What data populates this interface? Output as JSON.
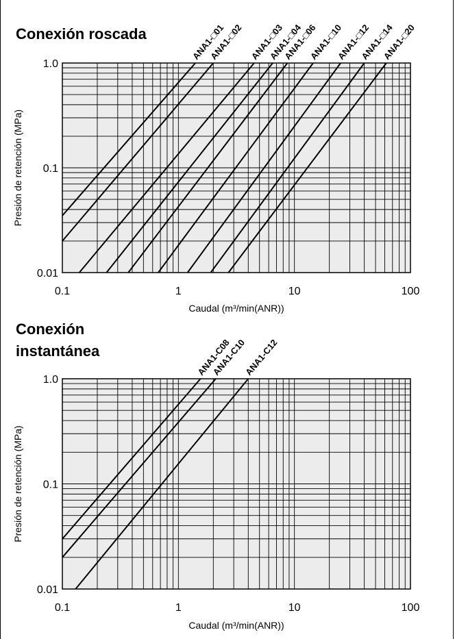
{
  "chart_data": [
    {
      "type": "line",
      "title": "Conexión roscada",
      "xlabel": "Caudal  (m³/min(ANR))",
      "ylabel": "Presión de retención (MPa)",
      "x_scale": "log",
      "y_scale": "log",
      "xlim": [
        0.1,
        100
      ],
      "ylim": [
        0.01,
        1.0
      ],
      "x_ticks": [
        "0.1",
        "1",
        "10",
        "100"
      ],
      "y_ticks": [
        "1.0",
        "0.1",
        "0.01"
      ],
      "grid": true,
      "series": [
        {
          "name": "ANA1-□01",
          "x": [
            0.1,
            1.4
          ],
          "y": [
            0.035,
            1.0
          ]
        },
        {
          "name": "ANA1-□02",
          "x": [
            0.1,
            2.0
          ],
          "y": [
            0.02,
            1.0
          ]
        },
        {
          "name": "ANA1-□03",
          "x": [
            0.14,
            4.5
          ],
          "y": [
            0.01,
            1.0
          ]
        },
        {
          "name": "ANA1-□04",
          "x": [
            0.24,
            6.5
          ],
          "y": [
            0.01,
            1.0
          ]
        },
        {
          "name": "ANA1-□06",
          "x": [
            0.37,
            8.7
          ],
          "y": [
            0.01,
            1.0
          ]
        },
        {
          "name": "ANA1-□10",
          "x": [
            0.67,
            14.5
          ],
          "y": [
            0.01,
            1.0
          ]
        },
        {
          "name": "ANA1-□12",
          "x": [
            1.2,
            25
          ],
          "y": [
            0.01,
            1.0
          ]
        },
        {
          "name": "ANA1-□14",
          "x": [
            1.9,
            40
          ],
          "y": [
            0.01,
            1.0
          ]
        },
        {
          "name": "ANA1-□20",
          "x": [
            2.7,
            62
          ],
          "y": [
            0.01,
            1.0
          ]
        }
      ]
    },
    {
      "type": "line",
      "title": "Conexión instantánea",
      "title_lines": [
        "Conexión",
        "instantánea"
      ],
      "xlabel": "Caudal (m³/min(ANR))",
      "ylabel": "Presión de retención (MPa)",
      "x_scale": "log",
      "y_scale": "log",
      "xlim": [
        0.1,
        100
      ],
      "ylim": [
        0.01,
        1.0
      ],
      "x_ticks": [
        "0.1",
        "1",
        "10",
        "100"
      ],
      "y_ticks": [
        "1.0",
        "0.1",
        "0.01"
      ],
      "grid": true,
      "series": [
        {
          "name": "ANA1-C08",
          "x": [
            0.1,
            1.55
          ],
          "y": [
            0.03,
            1.0
          ]
        },
        {
          "name": "ANA1-C10",
          "x": [
            0.1,
            2.1
          ],
          "y": [
            0.02,
            1.0
          ]
        },
        {
          "name": "ANA1-C12",
          "x": [
            0.13,
            4.0
          ],
          "y": [
            0.01,
            1.0
          ]
        }
      ]
    }
  ]
}
